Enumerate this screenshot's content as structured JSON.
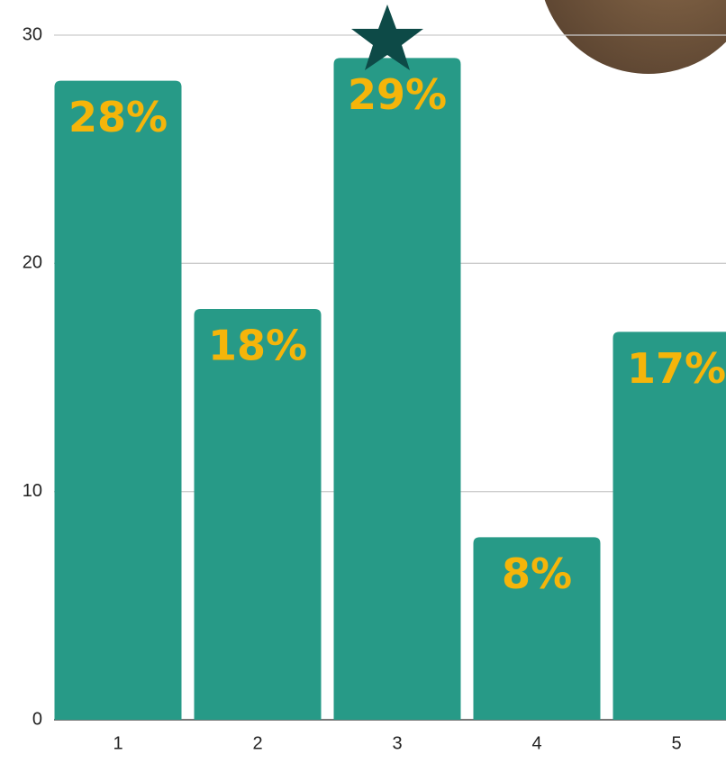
{
  "chart_data": {
    "type": "bar",
    "categories": [
      "1",
      "2",
      "3",
      "4",
      "5"
    ],
    "values": [
      28,
      18,
      29,
      8,
      17
    ],
    "value_labels": [
      "28%",
      "18%",
      "29%",
      "8%",
      "17%"
    ],
    "color": "#279a87",
    "label_color": "#f5b50a",
    "ylim": [
      0,
      30
    ],
    "yticks": [
      0,
      10,
      20,
      30
    ],
    "grid": true
  }
}
